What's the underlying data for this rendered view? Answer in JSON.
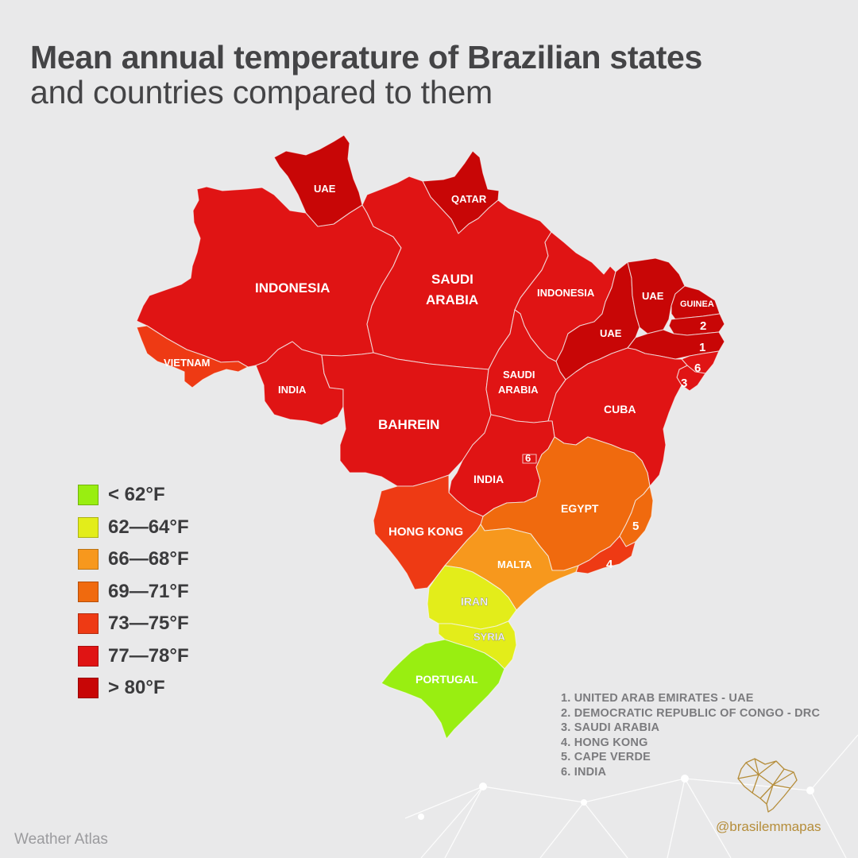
{
  "title": "Mean annual temperature of Brazilian states",
  "subtitle": "and countries compared to them",
  "colors": {
    "lt62": "#99ee11",
    "c62_64": "#e3ed1a",
    "c66_68": "#f7981d",
    "c69_71": "#f06a0e",
    "c73_75": "#ee3a14",
    "c77_78": "#e01414",
    "gt80": "#c80606",
    "background": "#e9e9ea"
  },
  "legend": [
    {
      "label": "< 62°F",
      "color": "#99ee11"
    },
    {
      "label": "62—64°F",
      "color": "#e3ed1a"
    },
    {
      "label": "66—68°F",
      "color": "#f7981d"
    },
    {
      "label": "69—71°F",
      "color": "#f06a0e"
    },
    {
      "label": "73—75°F",
      "color": "#ee3a14"
    },
    {
      "label": "77—78°F",
      "color": "#e01414"
    },
    {
      "label": "> 80°F",
      "color": "#c80606"
    }
  ],
  "map_labels": {
    "roraima": "UAE",
    "amapa": "QATAR",
    "amazonas": "INDONESIA",
    "para_1": "SAUDI",
    "para_2": "ARABIA",
    "maranhao": "INDONESIA",
    "piaui": "UAE",
    "ceara": "UAE",
    "rio_grande_do_norte": "GUINEA",
    "paraiba": "2",
    "pernambuco": "1",
    "alagoas": "6",
    "sergipe": "3",
    "acre": "VIETNAM",
    "rondonia": "INDIA",
    "tocantins_1": "SAUDI",
    "tocantins_2": "ARABIA",
    "mato_grosso": "BAHREIN",
    "bahia": "CUBA",
    "goias": "INDIA",
    "distrito_federal": "6",
    "minas_gerais": "EGYPT",
    "espirito_santo": "5",
    "rio_de_janeiro": "4",
    "mato_grosso_do_sul": "HONG KONG",
    "sao_paulo": "MALTA",
    "parana": "IRAN",
    "santa_catarina": "SYRIA",
    "rio_grande_do_sul": "PORTUGAL"
  },
  "footnotes": [
    "1. UNITED ARAB EMIRATES - UAE",
    "2. DEMOCRATIC REPUBLIC OF CONGO - DRC",
    "3. SAUDI ARABIA",
    "4. HONG KONG",
    "5. CAPE VERDE",
    "6. INDIA"
  ],
  "source": "Weather Atlas",
  "handle": "@brasilemmapas"
}
